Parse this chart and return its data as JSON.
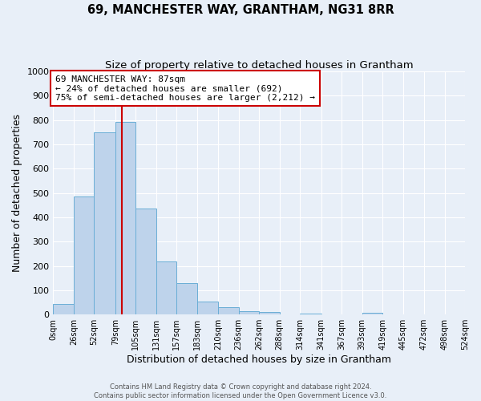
{
  "title": "69, MANCHESTER WAY, GRANTHAM, NG31 8RR",
  "subtitle": "Size of property relative to detached houses in Grantham",
  "xlabel": "Distribution of detached houses by size in Grantham",
  "ylabel": "Number of detached properties",
  "bin_edges": [
    0,
    26,
    52,
    79,
    105,
    131,
    157,
    183,
    210,
    236,
    262,
    288,
    314,
    341,
    367,
    393,
    419,
    445,
    472,
    498,
    524
  ],
  "bar_heights": [
    42,
    485,
    750,
    792,
    437,
    220,
    128,
    52,
    30,
    13,
    9,
    0,
    5,
    0,
    0,
    8,
    0,
    0,
    0,
    0
  ],
  "bar_color": "#bed3eb",
  "bar_edge_color": "#6aaed6",
  "property_size": 87,
  "vline_color": "#cc0000",
  "annotation_line1": "69 MANCHESTER WAY: 87sqm",
  "annotation_line2": "← 24% of detached houses are smaller (692)",
  "annotation_line3": "75% of semi-detached houses are larger (2,212) →",
  "annotation_box_edge_color": "#cc0000",
  "ylim": [
    0,
    1000
  ],
  "yticks": [
    0,
    100,
    200,
    300,
    400,
    500,
    600,
    700,
    800,
    900,
    1000
  ],
  "footer_line1": "Contains HM Land Registry data © Crown copyright and database right 2024.",
  "footer_line2": "Contains public sector information licensed under the Open Government Licence v3.0.",
  "bg_color": "#e8eff8",
  "plot_bg_color": "#e8eff8",
  "grid_color": "#ffffff",
  "title_fontsize": 10.5,
  "subtitle_fontsize": 9.5
}
